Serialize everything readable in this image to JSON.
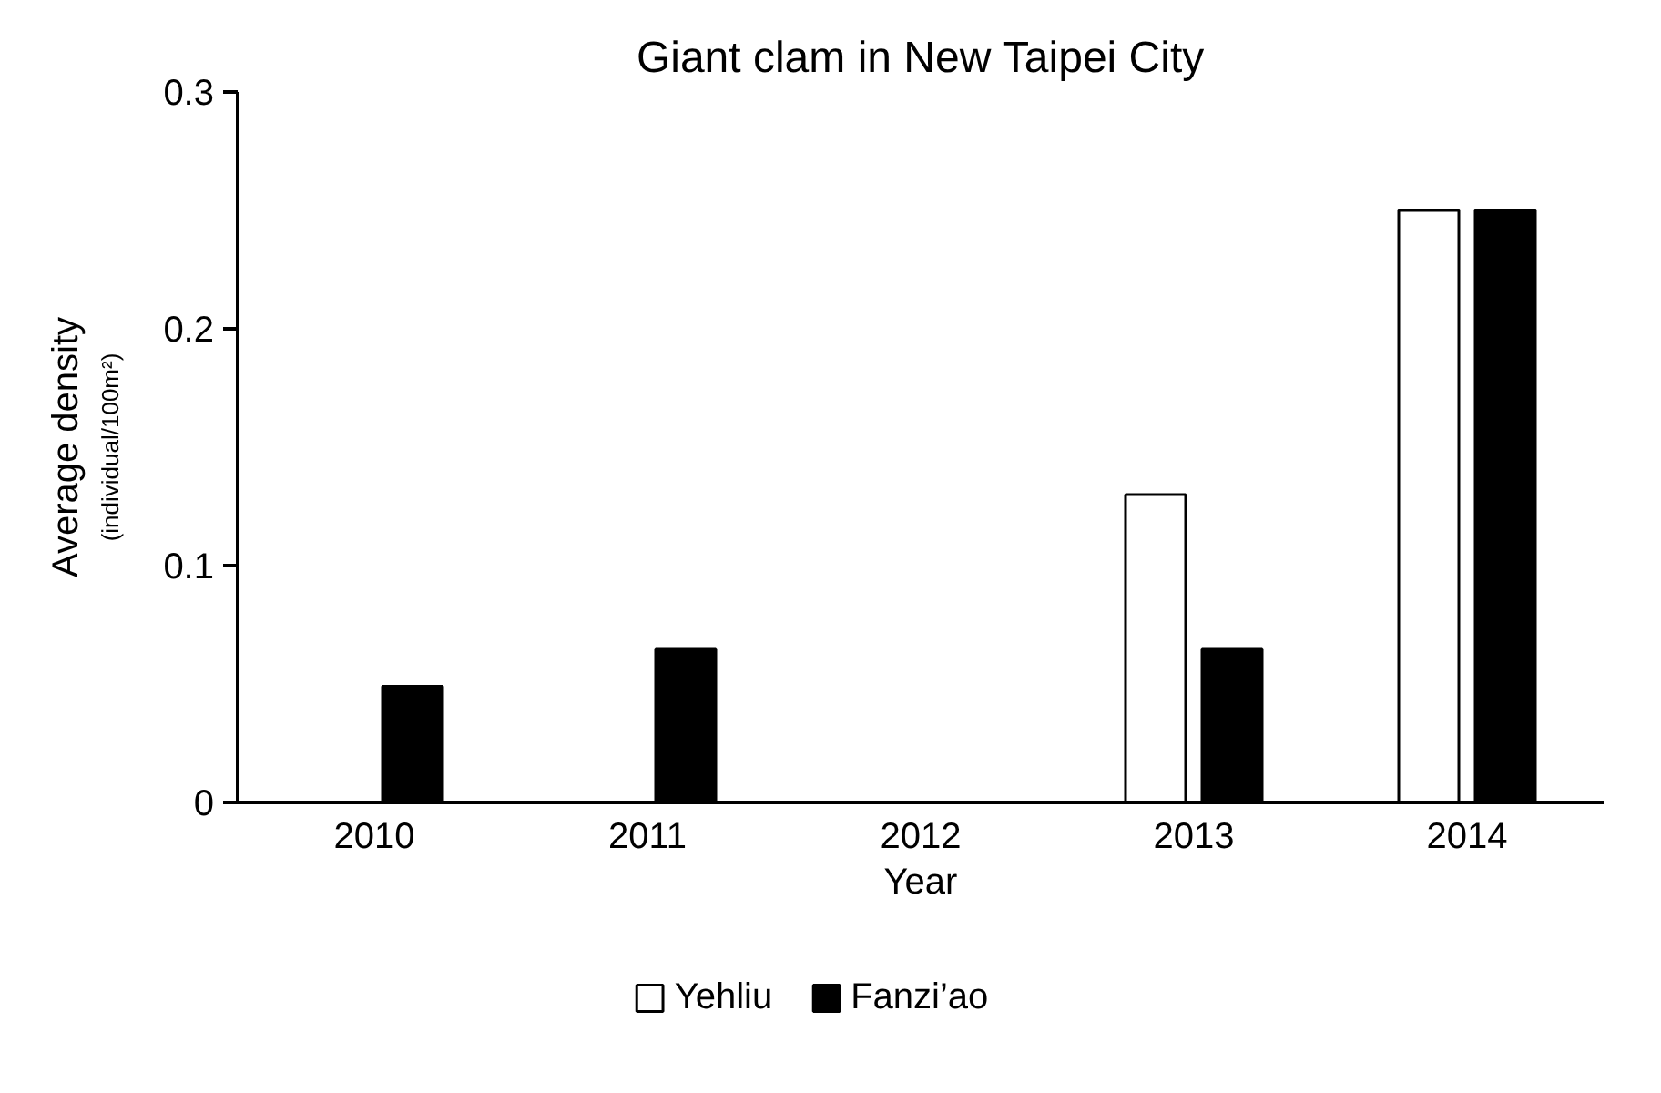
{
  "chart_data": {
    "type": "bar",
    "title": "Giant clam in New Taipei City",
    "xlabel": "Year",
    "ylabel": "Average density\n(individual/100m²)",
    "categories": [
      "2010",
      "2011",
      "2012",
      "2013",
      "2014"
    ],
    "series": [
      {
        "name": "Yehliu",
        "color": "#ffffff",
        "values": [
          0,
          0,
          0,
          0.13,
          0.25
        ]
      },
      {
        "name": "Fanzi’ao",
        "color": "#000000",
        "values": [
          0.049,
          0.065,
          0,
          0.065,
          0.25
        ]
      }
    ],
    "ylim": [
      0,
      0.3
    ],
    "yticks": [
      0,
      0.1,
      0.2,
      0.3
    ],
    "grid": false,
    "legend": "bottom"
  }
}
